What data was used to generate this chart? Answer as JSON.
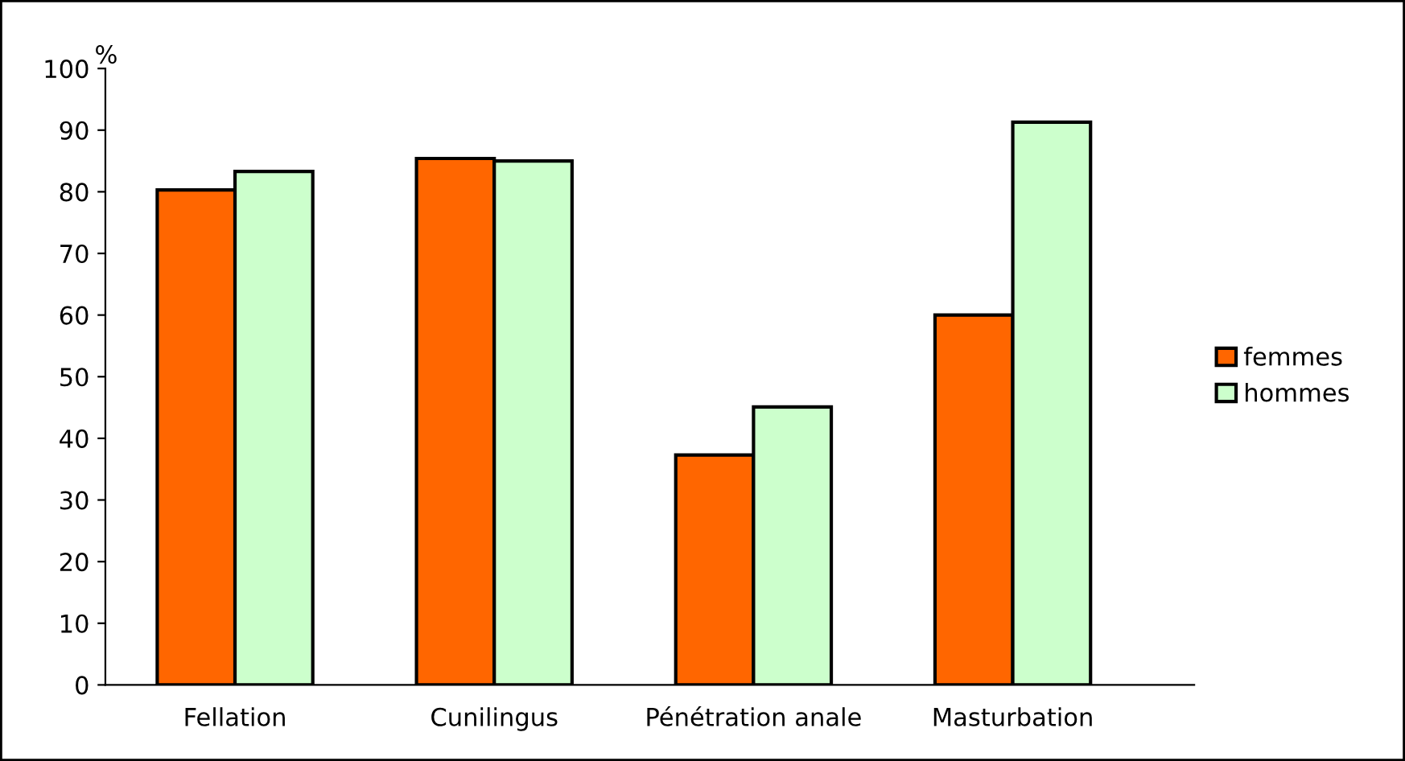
{
  "chart_data": {
    "type": "bar",
    "ylabel": "%",
    "categories": [
      "Fellation",
      "Cunilingus",
      "Pénétration anale",
      "Masturbation"
    ],
    "series": [
      {
        "name": "femmes",
        "color": "#ff6600",
        "values": [
          80.3,
          85.4,
          37.3,
          60.0
        ]
      },
      {
        "name": "hommes",
        "color": "#ccffcc",
        "values": [
          83.3,
          85.0,
          45.1,
          91.3
        ]
      }
    ],
    "ylim": [
      0,
      100
    ],
    "yticks": [
      0,
      10,
      20,
      30,
      40,
      50,
      60,
      70,
      80,
      90,
      100
    ],
    "grid": false,
    "legend": "right"
  }
}
